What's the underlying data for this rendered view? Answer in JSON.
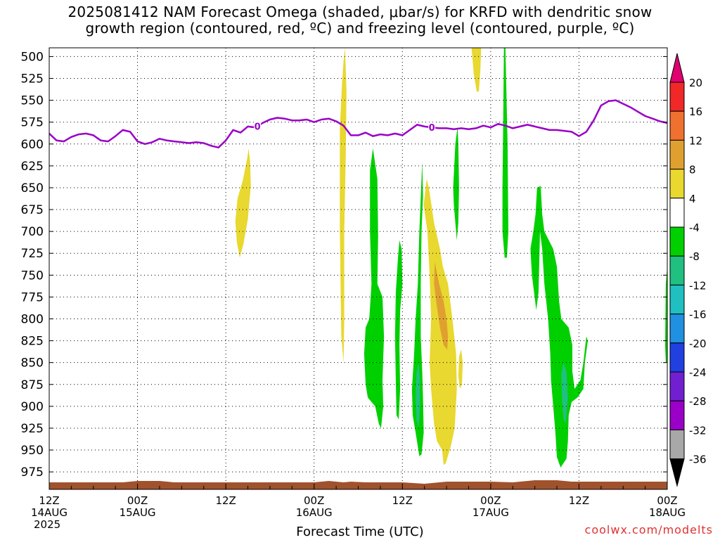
{
  "title_line1": "2025081412 NAM Forecast Omega (shaded, μbar/s) for KRFD with dendritic snow",
  "title_line2": "growth region (contoured, red, ºC) and freezing level (contoured, purple, ºC)",
  "credit": "coolwx.com/modelts",
  "chart_data": {
    "type": "heatmap",
    "xlabel": "Forecast Time (UTC)",
    "y_ticks": [
      500,
      525,
      550,
      575,
      600,
      625,
      650,
      675,
      700,
      725,
      750,
      775,
      800,
      825,
      850,
      875,
      900,
      925,
      950,
      975
    ],
    "ylim": [
      490,
      995
    ],
    "x_ticks": [
      {
        "h": 0,
        "line1": "12Z",
        "line2": "14AUG",
        "line3": "2025"
      },
      {
        "h": 12,
        "line1": "00Z",
        "line2": "15AUG",
        "line3": ""
      },
      {
        "h": 24,
        "line1": "12Z",
        "line2": "",
        "line3": ""
      },
      {
        "h": 36,
        "line1": "00Z",
        "line2": "16AUG",
        "line3": ""
      },
      {
        "h": 48,
        "line1": "12Z",
        "line2": "",
        "line3": ""
      },
      {
        "h": 60,
        "line1": "00Z",
        "line2": "17AUG",
        "line3": ""
      },
      {
        "h": 72,
        "line1": "12Z",
        "line2": "",
        "line3": ""
      },
      {
        "h": 84,
        "line1": "00Z",
        "line2": "18AUG",
        "line3": ""
      }
    ],
    "xlim": [
      0,
      84
    ],
    "grid": true,
    "colorbar": {
      "labels": [
        "20",
        "16",
        "12",
        "8",
        "4",
        "-4",
        "-8",
        "-12",
        "-16",
        "-20",
        "-24",
        "-28",
        "-32",
        "-36"
      ],
      "colors": [
        "#e0006f",
        "#f02828",
        "#f07030",
        "#e0a030",
        "#e8d830",
        "#ffffff",
        "#00d000",
        "#20c080",
        "#20c0c0",
        "#2090e0",
        "#2040e0",
        "#7020d0",
        "#9a00c8",
        "#a8a8a8",
        "#000000"
      ]
    },
    "freezing_level": {
      "label": "0",
      "color": "#9a00c8",
      "points": [
        [
          0,
          588
        ],
        [
          1,
          596
        ],
        [
          2,
          597
        ],
        [
          3,
          592
        ],
        [
          4,
          589
        ],
        [
          5,
          588
        ],
        [
          6,
          590
        ],
        [
          7,
          596
        ],
        [
          8,
          597
        ],
        [
          9,
          591
        ],
        [
          10,
          584
        ],
        [
          11,
          586
        ],
        [
          12,
          597
        ],
        [
          13,
          600
        ],
        [
          14,
          598
        ],
        [
          15,
          594
        ],
        [
          16,
          596
        ],
        [
          17,
          597
        ],
        [
          18,
          598
        ],
        [
          19,
          599
        ],
        [
          20,
          598
        ],
        [
          21,
          599
        ],
        [
          22,
          602
        ],
        [
          23,
          604
        ],
        [
          24,
          596
        ],
        [
          25,
          584
        ],
        [
          26,
          587
        ],
        [
          27,
          580
        ],
        [
          28,
          581
        ],
        [
          29,
          576
        ],
        [
          30,
          572
        ],
        [
          31,
          570
        ],
        [
          32,
          571
        ],
        [
          33,
          573
        ],
        [
          34,
          573
        ],
        [
          35,
          572
        ],
        [
          36,
          575
        ],
        [
          37,
          572
        ],
        [
          38,
          571
        ],
        [
          39,
          574
        ],
        [
          40,
          579
        ],
        [
          41,
          590
        ],
        [
          42,
          590
        ],
        [
          43,
          587
        ],
        [
          44,
          591
        ],
        [
          45,
          589
        ],
        [
          46,
          590
        ],
        [
          47,
          588
        ],
        [
          48,
          590
        ],
        [
          49,
          584
        ],
        [
          50,
          578
        ],
        [
          51,
          580
        ],
        [
          52,
          581
        ],
        [
          53,
          582
        ],
        [
          54,
          582
        ],
        [
          55,
          583
        ],
        [
          56,
          582
        ],
        [
          57,
          583
        ],
        [
          58,
          582
        ],
        [
          59,
          579
        ],
        [
          60,
          581
        ],
        [
          61,
          577
        ],
        [
          62,
          579
        ],
        [
          63,
          582
        ],
        [
          64,
          580
        ],
        [
          65,
          578
        ],
        [
          66,
          580
        ],
        [
          67,
          582
        ],
        [
          68,
          584
        ],
        [
          69,
          584
        ],
        [
          70,
          585
        ],
        [
          71,
          586
        ],
        [
          72,
          591
        ],
        [
          73,
          586
        ],
        [
          74,
          573
        ],
        [
          75,
          556
        ],
        [
          76,
          551
        ],
        [
          77,
          550
        ],
        [
          78,
          554
        ],
        [
          79,
          558
        ],
        [
          80,
          563
        ],
        [
          81,
          568
        ],
        [
          82,
          571
        ],
        [
          83,
          574
        ],
        [
          84,
          576
        ]
      ]
    },
    "shaded_regions": [
      {
        "omega": 6,
        "color": "#e8d830",
        "points": [
          [
            25.3,
            688
          ],
          [
            25.6,
            662
          ],
          [
            26.3,
            642
          ],
          [
            26.9,
            617
          ],
          [
            27.1,
            605
          ],
          [
            27.3,
            620
          ],
          [
            27.4,
            648
          ],
          [
            27.0,
            686
          ],
          [
            26.4,
            714
          ],
          [
            25.9,
            730
          ],
          [
            25.5,
            712
          ]
        ]
      },
      {
        "omega": 6,
        "color": "#e8d830",
        "points": [
          [
            39.5,
            583
          ],
          [
            39.8,
            530
          ],
          [
            40.0,
            505
          ],
          [
            40.2,
            490
          ],
          [
            40.4,
            540
          ],
          [
            40.3,
            615
          ],
          [
            40.1,
            700
          ],
          [
            40.1,
            800
          ],
          [
            40.0,
            850
          ],
          [
            39.7,
            820
          ],
          [
            39.5,
            700
          ],
          [
            39.5,
            620
          ]
        ]
      },
      {
        "omega": 6,
        "color": "#e8d830",
        "points": [
          [
            57.4,
            490
          ],
          [
            58.7,
            490
          ],
          [
            58.6,
            515
          ],
          [
            58.4,
            540
          ],
          [
            58.1,
            540
          ],
          [
            57.7,
            520
          ],
          [
            57.5,
            500
          ]
        ]
      },
      {
        "omega": 6,
        "color": "#e8d830",
        "points": [
          [
            50.9,
            670
          ],
          [
            51.3,
            640
          ],
          [
            51.6,
            650
          ],
          [
            52.3,
            690
          ],
          [
            53.1,
            720
          ],
          [
            53.5,
            740
          ],
          [
            54.2,
            760
          ],
          [
            54.8,
            800
          ],
          [
            55.3,
            840
          ],
          [
            55.4,
            880
          ],
          [
            55.1,
            925
          ],
          [
            54.6,
            945
          ],
          [
            53.9,
            965
          ],
          [
            53.6,
            967
          ],
          [
            53.4,
            950
          ],
          [
            52.7,
            940
          ],
          [
            52.3,
            920
          ],
          [
            51.9,
            880
          ],
          [
            51.7,
            850
          ],
          [
            51.9,
            800
          ],
          [
            51.7,
            750
          ],
          [
            51.4,
            700
          ]
        ]
      },
      {
        "omega": 6,
        "color": "#e8d830",
        "points": [
          [
            55.7,
            843
          ],
          [
            56.0,
            835
          ],
          [
            56.2,
            850
          ],
          [
            56.1,
            875
          ],
          [
            55.8,
            880
          ],
          [
            55.6,
            865
          ]
        ]
      },
      {
        "omega": 10,
        "color": "#e0a030",
        "points": [
          [
            52.4,
            735
          ],
          [
            53.0,
            760
          ],
          [
            53.6,
            780
          ],
          [
            54.0,
            800
          ],
          [
            54.2,
            820
          ],
          [
            54.1,
            835
          ],
          [
            53.6,
            830
          ],
          [
            53.1,
            810
          ],
          [
            52.6,
            780
          ],
          [
            52.3,
            760
          ]
        ]
      },
      {
        "omega": -6,
        "color": "#00d000",
        "points": [
          [
            43.6,
            630
          ],
          [
            44.0,
            605
          ],
          [
            44.6,
            640
          ],
          [
            44.7,
            705
          ],
          [
            44.6,
            760
          ],
          [
            45.3,
            775
          ],
          [
            45.5,
            820
          ],
          [
            45.3,
            870
          ],
          [
            45.4,
            900
          ],
          [
            45.1,
            925
          ],
          [
            44.8,
            920
          ],
          [
            44.3,
            900
          ],
          [
            43.3,
            890
          ],
          [
            43.0,
            875
          ],
          [
            42.8,
            840
          ],
          [
            43.0,
            810
          ],
          [
            43.5,
            800
          ],
          [
            43.8,
            760
          ],
          [
            43.6,
            700
          ]
        ]
      },
      {
        "omega": -6,
        "color": "#00d000",
        "points": [
          [
            47.1,
            770
          ],
          [
            47.4,
            730
          ],
          [
            47.6,
            710
          ],
          [
            47.9,
            720
          ],
          [
            48.0,
            760
          ],
          [
            47.7,
            790
          ],
          [
            47.6,
            830
          ],
          [
            47.7,
            880
          ],
          [
            47.5,
            915
          ],
          [
            47.2,
            910
          ],
          [
            47.1,
            870
          ],
          [
            47.0,
            820
          ]
        ]
      },
      {
        "omega": -6,
        "color": "#00d000",
        "points": [
          [
            49.3,
            880
          ],
          [
            49.6,
            840
          ],
          [
            49.8,
            800
          ],
          [
            50.1,
            760
          ],
          [
            50.3,
            700
          ],
          [
            50.6,
            640
          ],
          [
            50.7,
            620
          ],
          [
            50.8,
            660
          ],
          [
            50.6,
            700
          ],
          [
            50.5,
            760
          ],
          [
            50.5,
            820
          ],
          [
            50.7,
            860
          ],
          [
            50.8,
            890
          ],
          [
            50.9,
            930
          ],
          [
            50.6,
            955
          ],
          [
            50.3,
            957
          ],
          [
            49.8,
            930
          ],
          [
            49.4,
            910
          ]
        ]
      },
      {
        "omega": -6,
        "color": "#00d000",
        "points": [
          [
            54.9,
            650
          ],
          [
            55.2,
            600
          ],
          [
            55.5,
            580
          ],
          [
            55.6,
            600
          ],
          [
            55.7,
            650
          ],
          [
            55.6,
            690
          ],
          [
            55.4,
            710
          ],
          [
            55.2,
            690
          ],
          [
            55.0,
            670
          ]
        ]
      },
      {
        "omega": -6,
        "color": "#00d000",
        "points": [
          [
            61.7,
            580
          ],
          [
            61.8,
            490
          ],
          [
            62.0,
            490
          ],
          [
            62.3,
            600
          ],
          [
            62.4,
            700
          ],
          [
            62.2,
            730
          ],
          [
            61.9,
            730
          ],
          [
            61.6,
            700
          ],
          [
            61.6,
            650
          ]
        ]
      },
      {
        "omega": -6,
        "color": "#00d000",
        "points": [
          [
            65.4,
            720
          ],
          [
            65.8,
            700
          ],
          [
            66.1,
            680
          ],
          [
            66.3,
            650
          ],
          [
            66.8,
            648
          ],
          [
            67.0,
            680
          ],
          [
            67.3,
            700
          ],
          [
            68.5,
            720
          ],
          [
            69.0,
            740
          ],
          [
            69.3,
            780
          ],
          [
            69.6,
            800
          ],
          [
            70.6,
            810
          ],
          [
            71.1,
            830
          ],
          [
            71.1,
            860
          ],
          [
            71.4,
            880
          ],
          [
            72.2,
            870
          ],
          [
            72.6,
            850
          ],
          [
            73.0,
            820
          ],
          [
            73.2,
            825
          ],
          [
            72.8,
            850
          ],
          [
            72.6,
            880
          ],
          [
            71.8,
            890
          ],
          [
            71.0,
            895
          ],
          [
            70.6,
            910
          ],
          [
            70.5,
            940
          ],
          [
            70.3,
            960
          ],
          [
            69.5,
            970
          ],
          [
            69.0,
            958
          ],
          [
            68.8,
            930
          ],
          [
            68.5,
            900
          ],
          [
            68.2,
            870
          ],
          [
            68.1,
            840
          ],
          [
            67.8,
            800
          ],
          [
            67.3,
            760
          ],
          [
            67.0,
            720
          ],
          [
            66.7,
            700
          ],
          [
            66.5,
            770
          ],
          [
            66.2,
            790
          ],
          [
            65.9,
            770
          ],
          [
            65.6,
            750
          ]
        ]
      },
      {
        "omega": -10,
        "color": "#20c080",
        "points": [
          [
            49.9,
            862
          ],
          [
            50.2,
            850
          ],
          [
            50.4,
            870
          ],
          [
            50.4,
            900
          ],
          [
            50.2,
            925
          ],
          [
            49.9,
            915
          ],
          [
            49.8,
            890
          ]
        ]
      },
      {
        "omega": -10,
        "color": "#20c080",
        "points": [
          [
            69.6,
            863
          ],
          [
            69.9,
            850
          ],
          [
            70.3,
            860
          ],
          [
            70.5,
            890
          ],
          [
            70.2,
            920
          ],
          [
            69.9,
            915
          ],
          [
            69.7,
            895
          ]
        ]
      },
      {
        "omega": -6,
        "color": "#00d000",
        "points": [
          [
            83.7,
            830
          ],
          [
            83.8,
            760
          ],
          [
            84.0,
            740
          ],
          [
            84.0,
            850
          ],
          [
            83.8,
            850
          ]
        ]
      }
    ]
  }
}
